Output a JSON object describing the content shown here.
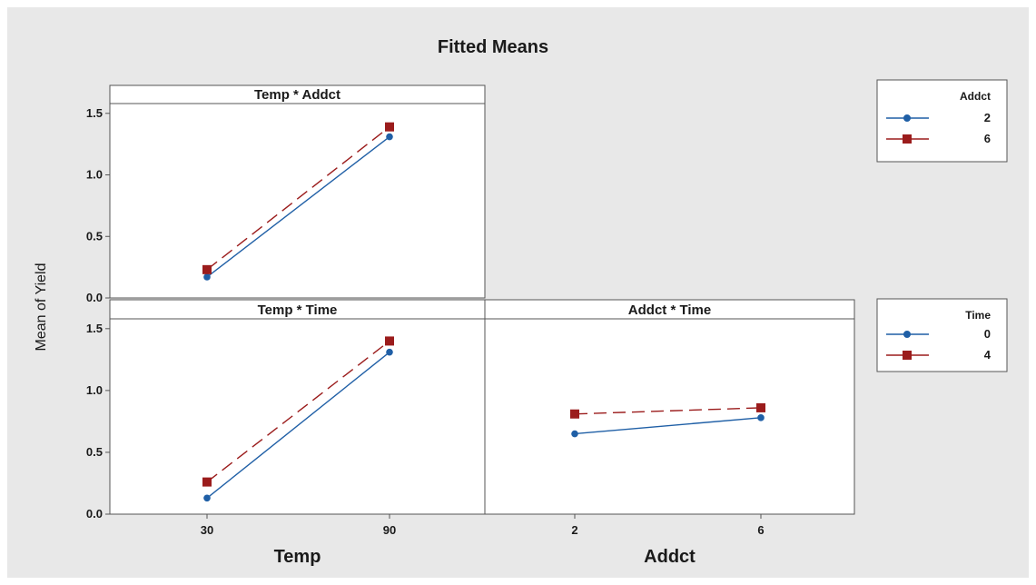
{
  "chart_data": {
    "type": "line",
    "title": "Fitted Means",
    "ylabel": "Mean of Yield",
    "ylim": [
      0,
      1.55
    ],
    "yticks": [
      "0.0",
      "0.5",
      "1.0",
      "1.5"
    ],
    "colors": {
      "series_a": "#1f5fa6",
      "series_b": "#9b1c1c"
    },
    "panels": [
      {
        "title": "Temp * Addct",
        "xlabel": "",
        "categories": [
          "30",
          "90"
        ],
        "series": [
          {
            "name": "2",
            "values": [
              0.17,
              1.31
            ]
          },
          {
            "name": "6",
            "values": [
              0.23,
              1.39
            ]
          }
        ]
      },
      {
        "title": "Temp * Time",
        "xlabel": "Temp",
        "categories": [
          "30",
          "90"
        ],
        "series": [
          {
            "name": "0",
            "values": [
              0.13,
              1.31
            ]
          },
          {
            "name": "4",
            "values": [
              0.26,
              1.4
            ]
          }
        ]
      },
      {
        "title": "Addct * Time",
        "xlabel": "Addct",
        "categories": [
          "2",
          "6"
        ],
        "series": [
          {
            "name": "0",
            "values": [
              0.65,
              0.78
            ]
          },
          {
            "name": "4",
            "values": [
              0.81,
              0.86
            ]
          }
        ]
      }
    ],
    "legends": [
      {
        "title": "Addct",
        "entries": [
          "2",
          "6"
        ]
      },
      {
        "title": "Time",
        "entries": [
          "0",
          "4"
        ]
      }
    ]
  }
}
